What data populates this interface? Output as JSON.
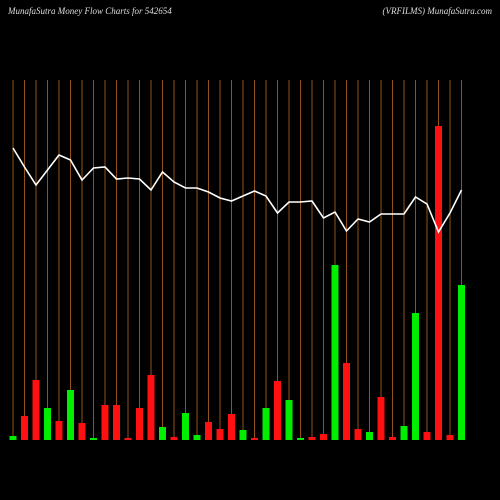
{
  "chart_data": {
    "type": "bar-line",
    "title": "MunafaSutra  Money Flow  Charts for 542654",
    "subtitle": "(VRFILMS) MunafaSutra.com",
    "grid": true,
    "grid_color": "#b8661e",
    "line_color": "#ffffff",
    "ylim": [
      0,
      360
    ],
    "categories": [
      null,
      null,
      null,
      null,
      null,
      null,
      null,
      null,
      null,
      null,
      null,
      null,
      null,
      null,
      null,
      null,
      null,
      null,
      null,
      null,
      null,
      null,
      null,
      null,
      null,
      null,
      null,
      null,
      null,
      null,
      null,
      null,
      null,
      null,
      null,
      null,
      null,
      null,
      null,
      null
    ],
    "bars": {
      "values": [
        4,
        24,
        60,
        32,
        19,
        50,
        17,
        2,
        35,
        35,
        2,
        32,
        65,
        13,
        3,
        27,
        5,
        18,
        11,
        26,
        10,
        2,
        32,
        59,
        40,
        2,
        3,
        6,
        175,
        77,
        11,
        8,
        43,
        3,
        14,
        127,
        8,
        314,
        5,
        155
      ],
      "colors": [
        "#00ee00",
        "#ff1111",
        "#ff1111",
        "#00ee00",
        "#ff1111",
        "#00ee00",
        "#ff1111",
        "#00ee00",
        "#ff1111",
        "#ff1111",
        "#ff1111",
        "#ff1111",
        "#ff1111",
        "#00ee00",
        "#ff1111",
        "#00ee00",
        "#00ee00",
        "#ff1111",
        "#ff1111",
        "#ff1111",
        "#00ee00",
        "#ff1111",
        "#00ee00",
        "#ff1111",
        "#00ee00",
        "#00ee00",
        "#ff1111",
        "#ff1111",
        "#00ee00",
        "#ff1111",
        "#ff1111",
        "#00ee00",
        "#ff1111",
        "#ff1111",
        "#00ee00",
        "#00ee00",
        "#ff1111",
        "#ff1111",
        "#ff1111",
        "#00ee00"
      ]
    },
    "line": {
      "values": [
        292,
        273,
        255,
        270,
        285,
        280,
        260,
        272,
        273,
        261,
        262,
        261,
        250,
        268,
        258,
        252,
        252,
        248,
        242,
        239,
        244,
        249,
        244,
        227,
        238,
        238,
        239,
        222,
        228,
        209,
        221,
        218,
        226,
        226,
        226,
        243,
        236,
        208,
        227,
        250
      ]
    }
  }
}
